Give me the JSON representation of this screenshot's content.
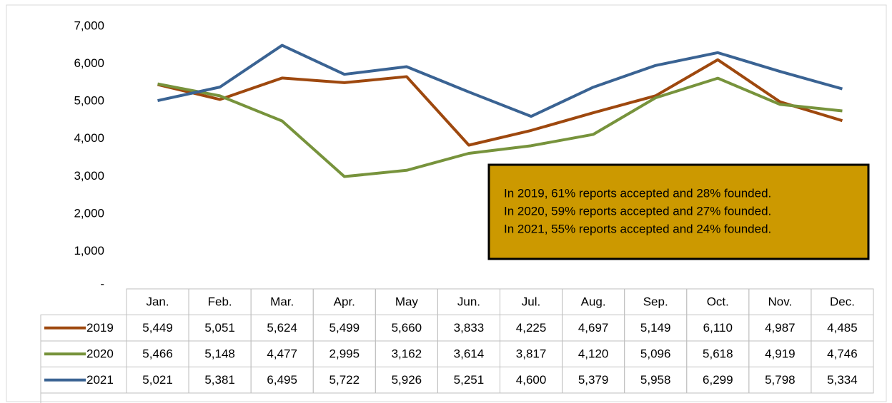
{
  "chart_data": {
    "type": "line",
    "categories": [
      "Jan.",
      "Feb.",
      "Mar.",
      "Apr.",
      "May",
      "Jun.",
      "Jul.",
      "Aug.",
      "Sep.",
      "Oct.",
      "Nov.",
      "Dec."
    ],
    "series": [
      {
        "name": "2019",
        "color": "#9e480e",
        "values": [
          5449,
          5051,
          5624,
          5499,
          5660,
          3833,
          4225,
          4697,
          5149,
          6110,
          4987,
          4485
        ],
        "value_labels": [
          "5,449",
          "5,051",
          "5,624",
          "5,499",
          "5,660",
          "3,833",
          "4,225",
          "4,697",
          "5,149",
          "6,110",
          "4,987",
          "4,485"
        ]
      },
      {
        "name": "2020",
        "color": "#77933c",
        "values": [
          5466,
          5148,
          4477,
          2995,
          3162,
          3614,
          3817,
          4120,
          5096,
          5618,
          4919,
          4746
        ],
        "value_labels": [
          "5,466",
          "5,148",
          "4,477",
          "2,995",
          "3,162",
          "3,614",
          "3,817",
          "4,120",
          "5,096",
          "5,618",
          "4,919",
          "4,746"
        ]
      },
      {
        "name": "2021",
        "color": "#3a6393",
        "values": [
          5021,
          5381,
          6495,
          5722,
          5926,
          5251,
          4600,
          5379,
          5958,
          6299,
          5798,
          5334
        ],
        "value_labels": [
          "5,021",
          "5,381",
          "6,495",
          "5,722",
          "5,926",
          "5,251",
          "4,600",
          "5,379",
          "5,958",
          "6,299",
          "5,798",
          "5,334"
        ]
      }
    ],
    "ylim": [
      0,
      7000
    ],
    "yticks": [
      {
        "value": 0,
        "label": "-"
      },
      {
        "value": 1000,
        "label": "1,000"
      },
      {
        "value": 2000,
        "label": "2,000"
      },
      {
        "value": 3000,
        "label": "3,000"
      },
      {
        "value": 4000,
        "label": "4,000"
      },
      {
        "value": 5000,
        "label": "5,000"
      },
      {
        "value": 6000,
        "label": "6,000"
      },
      {
        "value": 7000,
        "label": "7,000"
      }
    ],
    "annotation": {
      "lines": [
        "In 2019, 61% reports accepted and 28% founded.",
        "In 2020, 59% reports accepted and 27% founded.",
        "In 2021, 55% reports accepted and 24% founded."
      ],
      "color": "#cc9900"
    }
  }
}
